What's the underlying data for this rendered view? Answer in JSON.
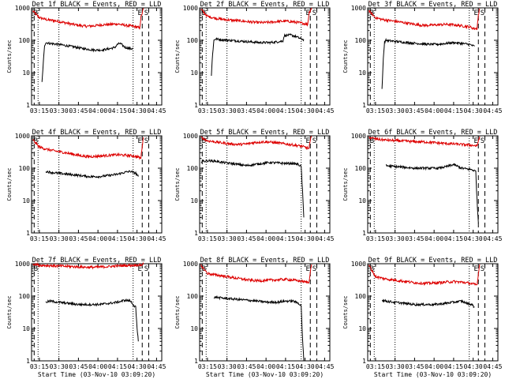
{
  "chart_data": {
    "type": "line",
    "layout": "3x3 grid",
    "common": {
      "yscale": "log",
      "ylim": [
        1,
        1000
      ],
      "yticks": [
        1,
        10,
        100,
        1000
      ],
      "ylabel": "Counts/sec",
      "xlabel": "Start Time (03-Nov-10 03:09:20)",
      "xlim_minutes_after_0309": [
        0,
        100
      ],
      "xticks": [
        "03:15",
        "03:30",
        "03:45",
        "04:00",
        "04:15",
        "04:30",
        "04:45"
      ],
      "xtick_minutes": [
        6,
        21,
        36,
        51,
        66,
        81,
        96
      ],
      "markers": {
        "start_label": "B",
        "end_labels": [
          "E",
          "S"
        ]
      },
      "series_names": [
        "Events",
        "LLD"
      ],
      "series_colors": {
        "Events": "#000000",
        "LLD": "#dd0000"
      }
    },
    "panels": [
      {
        "title": "Det 1f BLACK = Events, RED = LLD",
        "xlabel": "",
        "lld_x": [
          1,
          6,
          12,
          18,
          24,
          30,
          36,
          42,
          48,
          54,
          60,
          66,
          72,
          78,
          82,
          83,
          84,
          86
        ],
        "lld": [
          800,
          500,
          430,
          400,
          360,
          320,
          290,
          270,
          280,
          300,
          310,
          320,
          290,
          270,
          250,
          230,
          500,
          980
        ],
        "events_x": [
          8,
          9,
          10,
          11,
          14,
          20,
          30,
          40,
          48,
          54,
          60,
          64,
          66,
          68,
          72,
          76,
          78
        ],
        "events": [
          5,
          20,
          70,
          85,
          80,
          75,
          65,
          55,
          50,
          50,
          55,
          60,
          75,
          80,
          60,
          55,
          55
        ],
        "dotted_x": [
          5,
          21,
          78
        ],
        "dashed_x": [
          2,
          85,
          90
        ]
      },
      {
        "title": "Det 2f BLACK = Events, RED = LLD",
        "xlabel": "",
        "lld_x": [
          1,
          6,
          12,
          18,
          24,
          30,
          36,
          42,
          48,
          54,
          60,
          66,
          72,
          78,
          82,
          83,
          84,
          86
        ],
        "lld": [
          900,
          550,
          480,
          440,
          420,
          400,
          380,
          360,
          350,
          360,
          380,
          390,
          370,
          340,
          320,
          300,
          700,
          1000
        ],
        "events_x": [
          9,
          10,
          11,
          12,
          16,
          22,
          30,
          38,
          46,
          54,
          60,
          64,
          65,
          70,
          74,
          78,
          80
        ],
        "events": [
          8,
          40,
          100,
          110,
          105,
          100,
          95,
          90,
          85,
          85,
          90,
          95,
          140,
          145,
          130,
          110,
          105
        ],
        "dotted_x": [
          5,
          21,
          78
        ],
        "dashed_x": [
          2,
          85,
          90
        ]
      },
      {
        "title": "Det 3f BLACK = Events, RED = LLD",
        "xlabel": "",
        "lld_x": [
          1,
          6,
          12,
          18,
          24,
          30,
          36,
          42,
          48,
          54,
          60,
          66,
          72,
          78,
          82,
          84,
          85,
          86
        ],
        "lld": [
          800,
          500,
          430,
          400,
          370,
          340,
          310,
          290,
          290,
          300,
          310,
          300,
          280,
          260,
          230,
          230,
          600,
          950
        ],
        "events_x": [
          11,
          12,
          13,
          14,
          18,
          24,
          30,
          38,
          46,
          54,
          60,
          66,
          72,
          78,
          82
        ],
        "events": [
          3,
          30,
          90,
          100,
          95,
          90,
          85,
          80,
          75,
          75,
          80,
          85,
          80,
          75,
          65
        ],
        "dotted_x": [
          5,
          21,
          78
        ],
        "dashed_x": [
          2,
          85,
          90
        ]
      },
      {
        "title": "Det 4f BLACK = Events, RED = LLD",
        "xlabel": "",
        "lld_x": [
          1,
          6,
          12,
          18,
          24,
          30,
          36,
          42,
          48,
          54,
          60,
          66,
          72,
          78,
          82,
          84,
          85,
          86
        ],
        "lld": [
          750,
          450,
          380,
          340,
          310,
          280,
          250,
          230,
          230,
          240,
          250,
          260,
          250,
          240,
          220,
          200,
          500,
          900
        ],
        "events_x": [
          11,
          14,
          20,
          28,
          36,
          44,
          52,
          60,
          66,
          72,
          76,
          80,
          82
        ],
        "events": [
          80,
          75,
          70,
          65,
          60,
          55,
          55,
          60,
          65,
          75,
          80,
          70,
          55
        ],
        "dotted_x": [
          5,
          21,
          78
        ],
        "dashed_x": [
          2,
          85,
          90
        ]
      },
      {
        "title": "Det 5f BLACK = Events, RED = LLD",
        "xlabel": "",
        "lld_x": [
          1,
          6,
          12,
          18,
          24,
          30,
          36,
          42,
          48,
          54,
          60,
          66,
          72,
          78,
          82,
          84,
          85,
          86
        ],
        "lld": [
          900,
          700,
          650,
          600,
          560,
          540,
          560,
          620,
          650,
          640,
          600,
          560,
          520,
          480,
          430,
          400,
          700,
          980
        ],
        "events_x": [
          1,
          6,
          12,
          18,
          24,
          30,
          36,
          42,
          48,
          54,
          60,
          66,
          72,
          76,
          78,
          79,
          80
        ],
        "events": [
          160,
          170,
          165,
          150,
          140,
          130,
          120,
          130,
          140,
          150,
          145,
          140,
          140,
          130,
          110,
          20,
          3
        ],
        "dotted_x": [
          5,
          21,
          78
        ],
        "dashed_x": [
          2,
          85,
          90
        ]
      },
      {
        "title": "Det 6f BLACK = Events, RED = LLD",
        "xlabel": "",
        "lld_x": [
          1,
          6,
          12,
          18,
          24,
          30,
          36,
          42,
          48,
          54,
          60,
          66,
          72,
          78,
          82,
          84,
          85,
          86
        ],
        "lld": [
          900,
          800,
          750,
          720,
          700,
          680,
          660,
          650,
          630,
          600,
          580,
          560,
          540,
          520,
          500,
          480,
          700,
          950
        ],
        "events_x": [
          14,
          18,
          24,
          30,
          36,
          42,
          48,
          54,
          60,
          66,
          72,
          76,
          80,
          83,
          84,
          85
        ],
        "events": [
          120,
          115,
          110,
          105,
          100,
          100,
          100,
          100,
          110,
          130,
          100,
          95,
          90,
          80,
          10,
          2
        ],
        "dotted_x": [
          5,
          21,
          78
        ],
        "dashed_x": [
          2,
          85,
          90
        ]
      },
      {
        "title": "Det 7f BLACK = Events, RED = LLD",
        "xlabel": "Start Time (03-Nov-10 03:09:20)",
        "lld_x": [
          1,
          6,
          12,
          18,
          24,
          30,
          36,
          42,
          48,
          54,
          60,
          66,
          72,
          78,
          82,
          84,
          85,
          86
        ],
        "lld": [
          1000,
          900,
          880,
          860,
          840,
          820,
          800,
          780,
          780,
          800,
          820,
          860,
          880,
          900,
          920,
          900,
          950,
          1000
        ],
        "events_x": [
          11,
          14,
          20,
          28,
          36,
          44,
          52,
          60,
          66,
          72,
          76,
          78,
          80,
          81,
          82
        ],
        "events": [
          65,
          70,
          65,
          60,
          55,
          55,
          55,
          60,
          65,
          75,
          70,
          55,
          45,
          10,
          4
        ],
        "dotted_x": [
          5,
          21,
          78
        ],
        "dashed_x": [
          2,
          85,
          90
        ]
      },
      {
        "title": "Det 8f BLACK = Events, RED = LLD",
        "xlabel": "Start Time (03-Nov-10 03:09:20)",
        "lld_x": [
          1,
          6,
          12,
          18,
          24,
          30,
          36,
          42,
          48,
          54,
          60,
          66,
          72,
          78,
          82,
          84,
          85,
          86
        ],
        "lld": [
          900,
          500,
          450,
          420,
          380,
          350,
          320,
          300,
          300,
          310,
          320,
          330,
          310,
          290,
          270,
          260,
          600,
          950
        ],
        "events_x": [
          11,
          12,
          14,
          20,
          28,
          36,
          44,
          52,
          60,
          66,
          72,
          76,
          78,
          79,
          80
        ],
        "events": [
          80,
          95,
          90,
          85,
          80,
          75,
          70,
          65,
          65,
          70,
          70,
          60,
          50,
          5,
          1
        ],
        "dotted_x": [
          5,
          21,
          78
        ],
        "dashed_x": [
          2,
          85,
          90
        ]
      },
      {
        "title": "Det 9f BLACK = Events, RED = LLD",
        "xlabel": "Start Time (03-Nov-10 03:09:20)",
        "lld_x": [
          1,
          6,
          12,
          18,
          24,
          30,
          36,
          42,
          48,
          54,
          60,
          66,
          72,
          78,
          82,
          84,
          85,
          86
        ],
        "lld": [
          900,
          400,
          350,
          320,
          300,
          280,
          260,
          250,
          250,
          260,
          270,
          280,
          270,
          250,
          230,
          220,
          500,
          950
        ],
        "events_x": [
          11,
          14,
          20,
          28,
          36,
          44,
          52,
          60,
          66,
          72,
          76,
          80,
          82
        ],
        "events": [
          75,
          70,
          65,
          60,
          55,
          55,
          55,
          60,
          65,
          70,
          60,
          55,
          45
        ],
        "dotted_x": [
          5,
          21,
          78
        ],
        "dashed_x": [
          2,
          85,
          90
        ]
      }
    ]
  }
}
